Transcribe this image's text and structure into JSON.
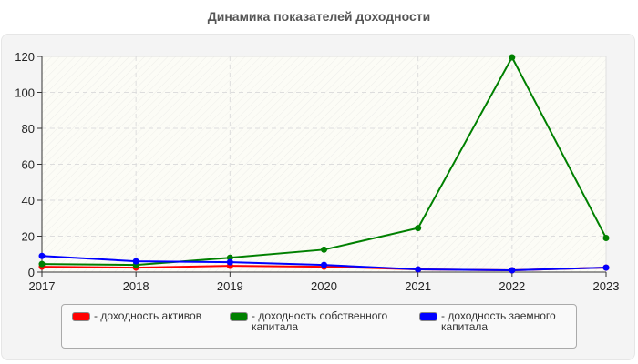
{
  "title": "Динамика показателей доходности",
  "colors": {
    "red": "#ff0000",
    "green": "#008000",
    "blue": "#0000ff",
    "background": "#f4f4f4",
    "grid": "#dddddd"
  },
  "legend": {
    "items": [
      {
        "label": "- доходность активов",
        "color": "#ff0000"
      },
      {
        "label": "- доходность собственного\nкапитала",
        "color": "#008000"
      },
      {
        "label": "- доходность заемного\nкапитала",
        "color": "#0000ff"
      }
    ]
  },
  "chart_data": {
    "type": "line",
    "title": "Динамика показателей доходности",
    "xlabel": "",
    "ylabel": "",
    "categories": [
      "2017",
      "2018",
      "2019",
      "2020",
      "2021",
      "2022",
      "2023"
    ],
    "yticks": [
      "0",
      "20",
      "40",
      "60",
      "80",
      "100",
      "120"
    ],
    "ylim": [
      0,
      120
    ],
    "grid": true,
    "legend_position": "bottom",
    "series": [
      {
        "name": "доходность активов",
        "color": "#ff0000",
        "values": [
          3,
          2.5,
          3.5,
          3,
          1.5,
          1,
          2.5
        ]
      },
      {
        "name": "доходность собственного капитала",
        "color": "#008000",
        "values": [
          4.5,
          4,
          8,
          12.5,
          24.5,
          119.5,
          19
        ]
      },
      {
        "name": "доходность заемного капитала",
        "color": "#0000ff",
        "values": [
          9,
          6,
          5.5,
          4,
          1.5,
          1,
          2.5
        ]
      }
    ]
  }
}
